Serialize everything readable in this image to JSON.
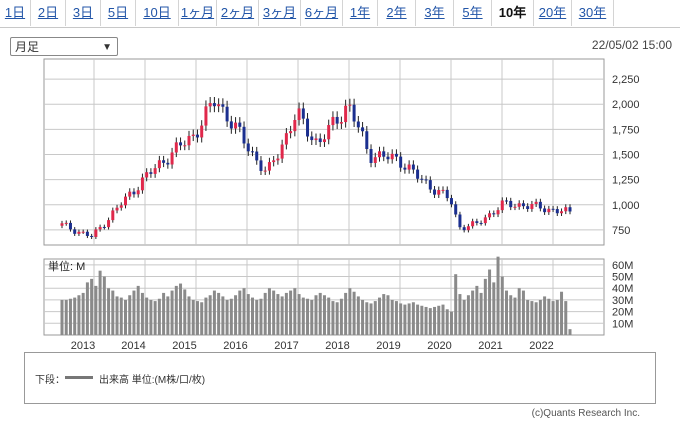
{
  "tabs": [
    {
      "label": "1日",
      "active": false
    },
    {
      "label": "2日",
      "active": false
    },
    {
      "label": "3日",
      "active": false
    },
    {
      "label": "5日",
      "active": false
    },
    {
      "label": "10日",
      "active": false
    },
    {
      "label": "1ヶ月",
      "active": false
    },
    {
      "label": "2ヶ月",
      "active": false
    },
    {
      "label": "3ヶ月",
      "active": false
    },
    {
      "label": "6ヶ月",
      "active": false
    },
    {
      "label": "1年",
      "active": false
    },
    {
      "label": "2年",
      "active": false
    },
    {
      "label": "3年",
      "active": false
    },
    {
      "label": "5年",
      "active": false
    },
    {
      "label": "10年",
      "active": true
    },
    {
      "label": "20年",
      "active": false
    },
    {
      "label": "30年",
      "active": false
    }
  ],
  "period_select": {
    "value": "月足"
  },
  "timestamp": "22/05/02 15:00",
  "legend": {
    "prefix": "下段：",
    "text": "出来高 単位:(M株/口/枚)"
  },
  "copyright": "(c)Quants Research Inc.",
  "colors": {
    "up": "#e0284b",
    "down": "#1b2f8f",
    "volume": "#8a8a8a",
    "grid": "#c8c8c8"
  },
  "chart_data": [
    {
      "type": "candlestick",
      "title": "",
      "ylim": [
        600,
        2450
      ],
      "yticks": [
        750,
        1000,
        1250,
        1500,
        1750,
        2000,
        2250
      ],
      "xlabels": [
        "2013",
        "2014",
        "2015",
        "2016",
        "2017",
        "2018",
        "2019",
        "2020",
        "2021",
        "2022"
      ],
      "series_anchors": {
        "x": [
          "2012-06",
          "2013-01",
          "2013-06",
          "2014-01",
          "2014-06",
          "2015-01",
          "2015-06",
          "2015-10",
          "2016-06",
          "2017-01",
          "2017-06",
          "2018-01",
          "2018-06",
          "2019-01",
          "2019-06",
          "2020-01",
          "2020-03",
          "2020-07",
          "2021-01",
          "2021-06",
          "2022-01",
          "2022-05"
        ],
        "close": [
          800,
          680,
          920,
          1250,
          1450,
          1700,
          2050,
          1800,
          1300,
          1900,
          1600,
          2000,
          1500,
          1450,
          1250,
          1050,
          780,
          800,
          1000,
          1000,
          950,
          920
        ]
      },
      "grid": true
    },
    {
      "type": "bar",
      "title": "単位: M",
      "ylim": [
        0,
        65
      ],
      "yticks": [
        "10M",
        "20M",
        "30M",
        "40M",
        "50M",
        "60M"
      ],
      "values": [
        30,
        30,
        31,
        32,
        34,
        36,
        45,
        48,
        42,
        55,
        50,
        40,
        38,
        33,
        32,
        30,
        34,
        38,
        42,
        36,
        32,
        30,
        29,
        31,
        36,
        33,
        38,
        42,
        44,
        39,
        33,
        30,
        29,
        28,
        32,
        34,
        38,
        36,
        33,
        30,
        31,
        34,
        38,
        40,
        35,
        32,
        30,
        31,
        36,
        40,
        38,
        35,
        33,
        36,
        38,
        40,
        35,
        32,
        31,
        30,
        34,
        36,
        34,
        32,
        29,
        28,
        31,
        36,
        40,
        37,
        33,
        30,
        28,
        27,
        29,
        32,
        35,
        34,
        30,
        29,
        27,
        26,
        27,
        28,
        26,
        25,
        24,
        23,
        24,
        25,
        26,
        22,
        20,
        52,
        35,
        30,
        34,
        38,
        42,
        36,
        48,
        56,
        45,
        67,
        50,
        38,
        34,
        32,
        40,
        38,
        30,
        29,
        28,
        30,
        33,
        31,
        29,
        30,
        37,
        29,
        5
      ]
    }
  ]
}
